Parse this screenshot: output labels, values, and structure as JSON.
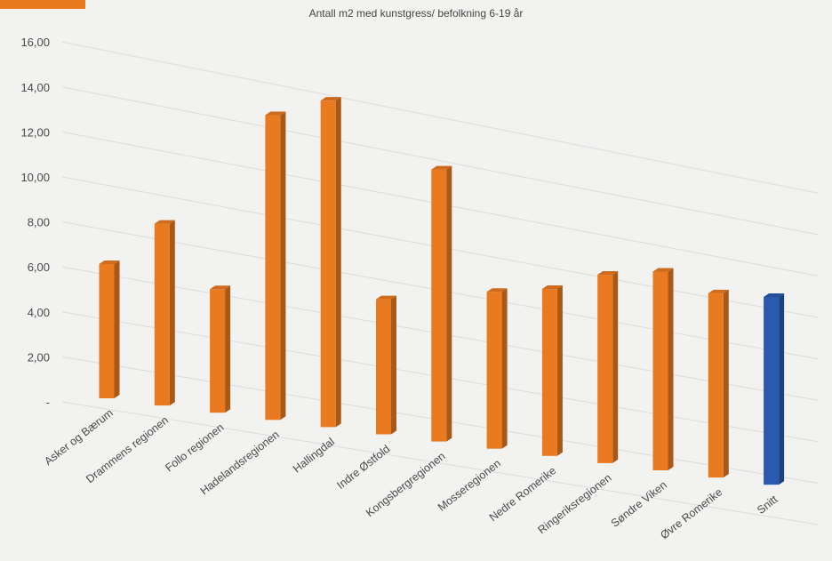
{
  "chart_data": {
    "type": "bar",
    "title": "Antall m2 med kunstgress/ befolkning 6-19 år",
    "categories": [
      "Asker og Bærum",
      "Drammens regionen",
      "Follo regionen",
      "Hadelandsregionen",
      "Hallingdal",
      "Indre Østfold",
      "Kongsbergregionen",
      "Mosseregionen",
      "Nedre Romerike",
      "Ringeriksregionen",
      "Søndre Viken",
      "Øvre Romerike",
      "Snitt"
    ],
    "values": [
      6.4,
      8.6,
      5.8,
      14.2,
      15.1,
      6.2,
      12.4,
      7.1,
      7.5,
      8.4,
      8.8,
      8.1,
      8.2
    ],
    "y_ticks": [
      "-",
      "2,00",
      "4,00",
      "6,00",
      "8,00",
      "10,00",
      "12,00",
      "14,00",
      "16,00"
    ],
    "ylim": [
      0,
      16
    ],
    "grid": true,
    "colors": {
      "bar": "#ea7a20",
      "highlight_bar": "#2a5ab0",
      "background": "#f2f2f0",
      "accent_tab": "#ea7a20"
    },
    "highlight_category": "Snitt"
  }
}
